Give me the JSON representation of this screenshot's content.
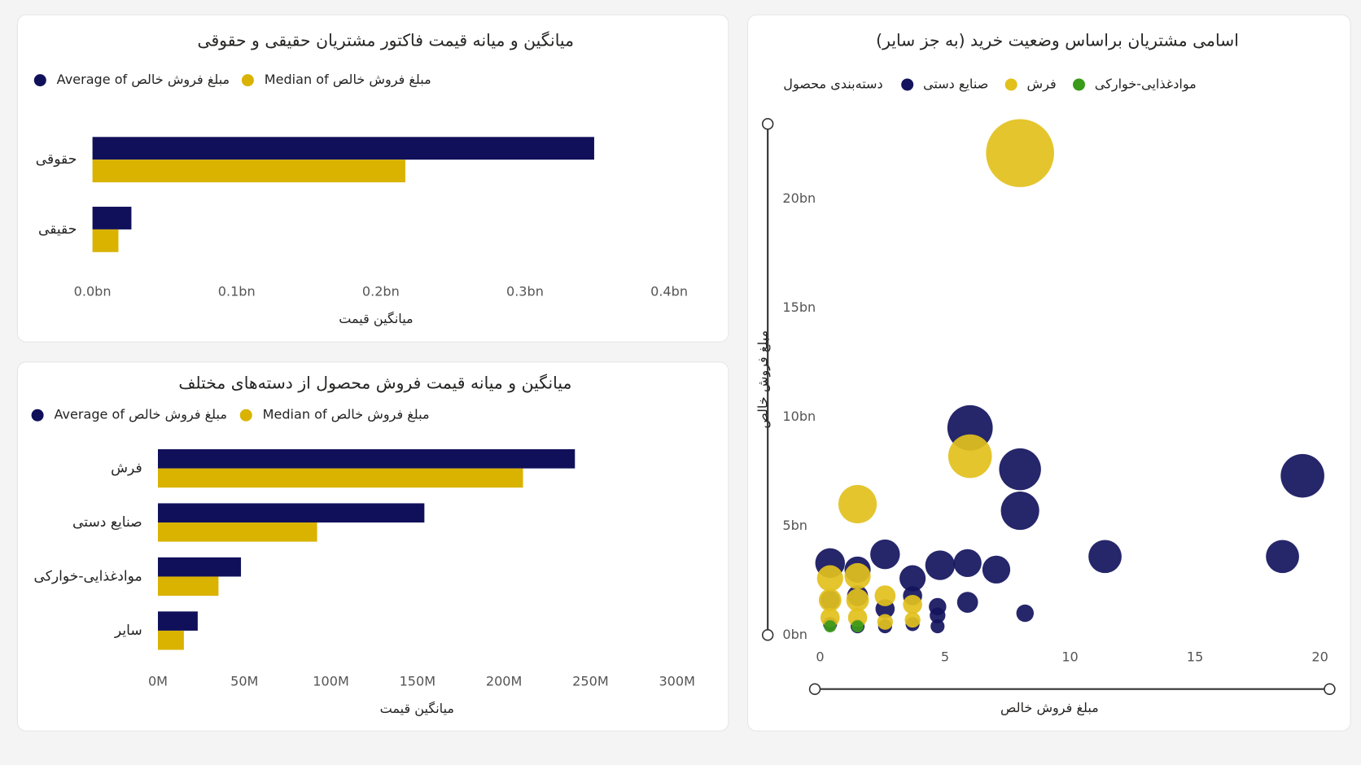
{
  "chart_data": [
    {
      "type": "hbar",
      "title": "میانگین و میانه قیمت فاکتور مشتریان حقیقی و حقوقی",
      "categories": [
        "حقوقی",
        "حقیقی"
      ],
      "series": [
        {
          "name": "Average of مبلغ فروش خالص",
          "color": "#10105a",
          "values": [
            0.348,
            0.027
          ]
        },
        {
          "name": "Median of مبلغ فروش خالص",
          "color": "#d9b300",
          "values": [
            0.217,
            0.018
          ]
        }
      ],
      "xlim": [
        0,
        0.4
      ],
      "xticks": [
        {
          "value": 0,
          "label": "0.0bn"
        },
        {
          "value": 0.1,
          "label": "0.1bn"
        },
        {
          "value": 0.2,
          "label": "0.2bn"
        },
        {
          "value": 0.3,
          "label": "0.3bn"
        },
        {
          "value": 0.4,
          "label": "0.4bn"
        }
      ],
      "xlabel": "میانگین قیمت"
    },
    {
      "type": "hbar",
      "title": "میانگین و میانه قیمت فروش محصول از دسته‌های مختلف",
      "categories": [
        "فرش",
        "صنایع دستی",
        "موادغذایی-خوارکی",
        "سایر"
      ],
      "series": [
        {
          "name": "Average of مبلغ فروش خالص",
          "color": "#10105a",
          "values": [
            241,
            154,
            48,
            23
          ]
        },
        {
          "name": "Median of مبلغ فروش خالص",
          "color": "#d9b300",
          "values": [
            211,
            92,
            35,
            15
          ]
        }
      ],
      "xlim": [
        0,
        300
      ],
      "xticks": [
        {
          "value": 0,
          "label": "0M"
        },
        {
          "value": 50,
          "label": "50M"
        },
        {
          "value": 100,
          "label": "100M"
        },
        {
          "value": 150,
          "label": "150M"
        },
        {
          "value": 200,
          "label": "200M"
        },
        {
          "value": 250,
          "label": "250M"
        },
        {
          "value": 300,
          "label": "300M"
        }
      ],
      "xlabel": "میانگین قیمت"
    },
    {
      "type": "scatter",
      "title": "اسامی مشتریان براساس وضعیت خرید (به جز سایر)",
      "legend_title": "دسته‌بندی محصول",
      "series": [
        {
          "name": "صنایع دستی",
          "color": "#14145e",
          "x": [
            6,
            8,
            8,
            19.3,
            11.4,
            18.5,
            2.6,
            4.8,
            5.9,
            7.05,
            3.7,
            0.4,
            1.5,
            5.9,
            8.2,
            1.5,
            2.6,
            3.7,
            4.7,
            0.4,
            0.4,
            1.5,
            2.6,
            3.7,
            4.7,
            4.7
          ],
          "y": [
            9.5,
            7.6,
            5.7,
            7.3,
            3.6,
            3.6,
            3.7,
            3.2,
            3.3,
            3.0,
            2.6,
            3.3,
            3.0,
            1.5,
            1.0,
            1.8,
            1.2,
            1.8,
            1.3,
            1.6,
            0.5,
            0.4,
            0.4,
            0.5,
            0.4,
            0.9
          ],
          "sizes": [
            26,
            24,
            22,
            25,
            19,
            19,
            17,
            17,
            16,
            16,
            15,
            17,
            15,
            12,
            10,
            12,
            11,
            11,
            10,
            11,
            8,
            8,
            8,
            8,
            8,
            9
          ]
        },
        {
          "name": "فرش",
          "color": "#e2c01c",
          "x": [
            8,
            6,
            1.5,
            0.4,
            1.5,
            2.6,
            3.7,
            0.4,
            1.5,
            0.4,
            1.5,
            2.6,
            3.7
          ],
          "y": [
            22.1,
            8.2,
            6.0,
            2.6,
            2.7,
            1.8,
            1.4,
            1.6,
            1.6,
            0.8,
            0.8,
            0.6,
            0.7
          ],
          "sizes": [
            39,
            25,
            22,
            15,
            15,
            12,
            11,
            13,
            13,
            11,
            11,
            9,
            9
          ]
        },
        {
          "name": "موادغذایی-خوارکی",
          "color": "#3a9a1a",
          "x": [
            0.4,
            1.5
          ],
          "y": [
            0.4,
            0.4
          ],
          "sizes": [
            7,
            7
          ]
        }
      ],
      "xlim": [
        0,
        21
      ],
      "xticks": [
        0,
        5,
        10,
        15,
        20
      ],
      "ylim": [
        0,
        23.4
      ],
      "yticks": [
        {
          "value": 0,
          "label": "0bn"
        },
        {
          "value": 5,
          "label": "5bn"
        },
        {
          "value": 10,
          "label": "10bn"
        },
        {
          "value": 15,
          "label": "15bn"
        },
        {
          "value": 20,
          "label": "20bn"
        }
      ],
      "xlabel": "مبلغ فروش خالص",
      "ylabel": "مبلغ فروش خالص"
    }
  ]
}
